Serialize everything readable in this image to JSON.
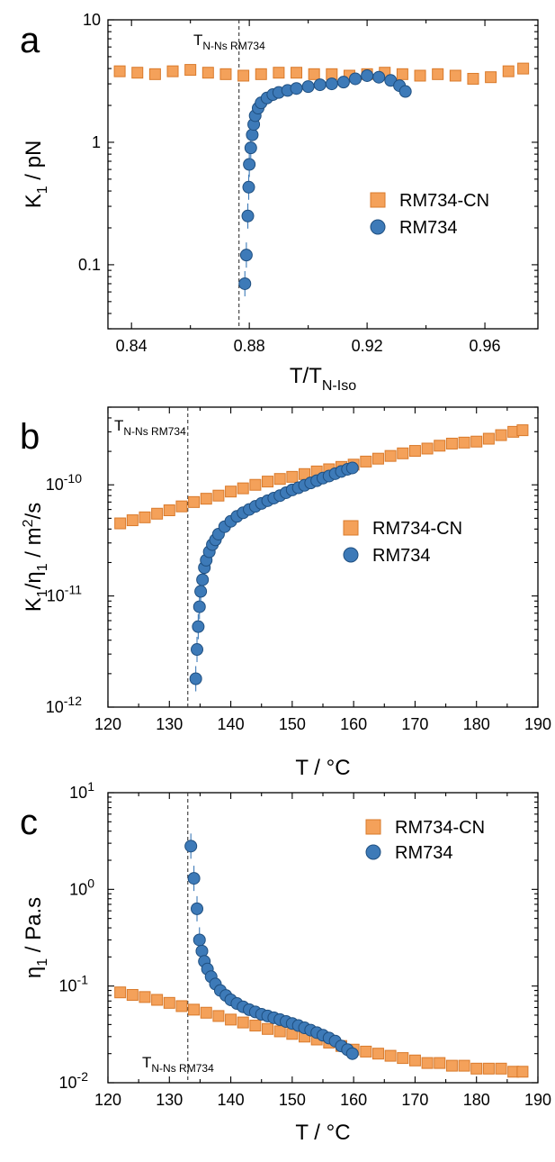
{
  "colors": {
    "rm734_cn": "#f4a15a",
    "rm734": "#3d7ab8",
    "axis": "#000000"
  },
  "chart_data": [
    {
      "panel": "a",
      "type": "scatter",
      "xlabel": "T/T",
      "xlabel_sub": "N-Iso",
      "ylabel": "K",
      "ylabel_sub": "1",
      "ylabel_unit": " / pN",
      "yscale": "log",
      "xlim": [
        0.832,
        0.978
      ],
      "ylim": [
        0.03,
        10
      ],
      "xticks": [
        0.84,
        0.88,
        0.92,
        0.96
      ],
      "xtick_labels": [
        "0.84",
        "0.88",
        "0.92",
        "0.96"
      ],
      "yticks": [
        0.1,
        1,
        10
      ],
      "ytick_labels": [
        "0.1",
        "1",
        "10"
      ],
      "vline": {
        "x": 0.8765,
        "label": "T",
        "label_sub": "N-Ns",
        "label_tag": "RM734"
      },
      "legend": {
        "position": "right",
        "entries": [
          "RM734-CN",
          "RM734"
        ]
      },
      "series": [
        {
          "name": "RM734-CN",
          "marker": "square",
          "x": [
            0.836,
            0.842,
            0.848,
            0.854,
            0.86,
            0.866,
            0.872,
            0.878,
            0.884,
            0.89,
            0.896,
            0.902,
            0.908,
            0.914,
            0.92,
            0.926,
            0.932,
            0.938,
            0.944,
            0.95,
            0.956,
            0.962,
            0.968,
            0.973
          ],
          "y": [
            3.8,
            3.7,
            3.6,
            3.8,
            3.9,
            3.7,
            3.6,
            3.5,
            3.6,
            3.7,
            3.7,
            3.6,
            3.6,
            3.5,
            3.6,
            3.7,
            3.6,
            3.5,
            3.6,
            3.5,
            3.3,
            3.4,
            3.8,
            4.0
          ]
        },
        {
          "name": "RM734",
          "marker": "circle",
          "x": [
            0.8785,
            0.879,
            0.8795,
            0.8798,
            0.88,
            0.8805,
            0.881,
            0.8815,
            0.882,
            0.883,
            0.884,
            0.886,
            0.888,
            0.89,
            0.893,
            0.896,
            0.9,
            0.904,
            0.908,
            0.912,
            0.916,
            0.92,
            0.924,
            0.928,
            0.931,
            0.933
          ],
          "y": [
            0.07,
            0.12,
            0.25,
            0.43,
            0.66,
            0.9,
            1.15,
            1.4,
            1.65,
            1.9,
            2.1,
            2.3,
            2.45,
            2.55,
            2.65,
            2.75,
            2.85,
            2.95,
            3.0,
            3.1,
            3.3,
            3.5,
            3.4,
            3.2,
            2.9,
            2.6
          ]
        }
      ]
    },
    {
      "panel": "b",
      "type": "scatter",
      "xlabel": "T / °C",
      "ylabel": "K",
      "ylabel_sub": "1",
      "ylabel_mid": "/η",
      "ylabel_sub2": "1",
      "ylabel_unit": " / m",
      "ylabel_sup": "2",
      "ylabel_tail": "/s",
      "yscale": "log",
      "xlim": [
        120,
        190
      ],
      "ylim": [
        1e-12,
        5e-10
      ],
      "xticks": [
        120,
        130,
        140,
        150,
        160,
        170,
        180,
        190
      ],
      "xtick_labels": [
        "120",
        "130",
        "140",
        "150",
        "160",
        "170",
        "180",
        "190"
      ],
      "yticks": [
        1e-12,
        1e-11,
        1e-10
      ],
      "ytick_labels": [
        "10",
        "10",
        "10"
      ],
      "ytick_exponents": [
        "-12",
        "-11",
        "-10"
      ],
      "vline": {
        "x": 133,
        "label": "T",
        "label_sub": "N-Ns",
        "label_tag": "RM734"
      },
      "legend": {
        "position": "right",
        "entries": [
          "RM734-CN",
          "RM734"
        ]
      },
      "series": [
        {
          "name": "RM734-CN",
          "marker": "square",
          "x": [
            122,
            124,
            126,
            128,
            130,
            132,
            134,
            136,
            138,
            140,
            142,
            144,
            146,
            148,
            150,
            152,
            154,
            156,
            158,
            160,
            162,
            164,
            166,
            168,
            170,
            172,
            174,
            176,
            178,
            180,
            182,
            184,
            186,
            187.5
          ],
          "y": [
            4.5e-11,
            4.8e-11,
            5.1e-11,
            5.5e-11,
            5.9e-11,
            6.4e-11,
            7e-11,
            7.5e-11,
            8e-11,
            8.7e-11,
            9.3e-11,
            1e-10,
            1.07e-10,
            1.13e-10,
            1.18e-10,
            1.25e-10,
            1.32e-10,
            1.38e-10,
            1.45e-10,
            1.52e-10,
            1.62e-10,
            1.72e-10,
            1.82e-10,
            1.92e-10,
            2.02e-10,
            2.12e-10,
            2.25e-10,
            2.35e-10,
            2.4e-10,
            2.45e-10,
            2.6e-10,
            2.8e-10,
            3e-10,
            3.1e-10
          ]
        },
        {
          "name": "RM734",
          "marker": "circle",
          "x": [
            134.3,
            134.5,
            134.7,
            134.9,
            135.1,
            135.4,
            135.7,
            136.0,
            136.5,
            137.0,
            137.5,
            138.0,
            139.0,
            140.0,
            141.0,
            142.0,
            143.0,
            144.0,
            145.0,
            146.0,
            147.0,
            148.0,
            149.0,
            150.0,
            151.0,
            152.0,
            153.0,
            154.0,
            155.0,
            156.0,
            157.0,
            158.0,
            159.0,
            159.8
          ],
          "y": [
            1.8e-12,
            3.3e-12,
            5.3e-12,
            8e-12,
            1.1e-11,
            1.4e-11,
            1.8e-11,
            2.1e-11,
            2.5e-11,
            2.9e-11,
            3.2e-11,
            3.6e-11,
            4.2e-11,
            4.7e-11,
            5.2e-11,
            5.6e-11,
            6e-11,
            6.4e-11,
            6.8e-11,
            7.2e-11,
            7.6e-11,
            8e-11,
            8.5e-11,
            9e-11,
            9.4e-11,
            9.9e-11,
            1.04e-10,
            1.09e-10,
            1.15e-10,
            1.2e-10,
            1.26e-10,
            1.32e-10,
            1.38e-10,
            1.42e-10
          ]
        }
      ]
    },
    {
      "panel": "c",
      "type": "scatter",
      "xlabel": "T / °C",
      "ylabel": "η",
      "ylabel_sub": "1",
      "ylabel_unit": " / Pa.s",
      "yscale": "log",
      "xlim": [
        120,
        190
      ],
      "ylim": [
        0.01,
        10
      ],
      "xticks": [
        120,
        130,
        140,
        150,
        160,
        170,
        180,
        190
      ],
      "xtick_labels": [
        "120",
        "130",
        "140",
        "150",
        "160",
        "170",
        "180",
        "190"
      ],
      "yticks": [
        0.01,
        0.1,
        1,
        10
      ],
      "ytick_labels": [
        "10",
        "10",
        "10",
        "10"
      ],
      "ytick_exponents": [
        "-2",
        "-1",
        "0",
        "1"
      ],
      "vline": {
        "x": 133,
        "label": "T",
        "label_sub": "N-Ns",
        "label_tag": "RM734"
      },
      "legend": {
        "position": "top-right",
        "entries": [
          "RM734-CN",
          "RM734"
        ]
      },
      "series": [
        {
          "name": "RM734-CN",
          "marker": "square",
          "x": [
            122,
            124,
            126,
            128,
            130,
            132,
            134,
            136,
            138,
            140,
            142,
            144,
            146,
            148,
            150,
            152,
            154,
            156,
            158,
            160,
            162,
            164,
            166,
            168,
            170,
            172,
            174,
            176,
            178,
            180,
            182,
            184,
            186,
            187.5
          ],
          "y": [
            0.086,
            0.081,
            0.077,
            0.072,
            0.067,
            0.062,
            0.057,
            0.053,
            0.049,
            0.045,
            0.042,
            0.039,
            0.036,
            0.034,
            0.032,
            0.03,
            0.028,
            0.026,
            0.024,
            0.022,
            0.021,
            0.02,
            0.019,
            0.018,
            0.017,
            0.016,
            0.016,
            0.015,
            0.015,
            0.014,
            0.014,
            0.014,
            0.013,
            0.013
          ]
        },
        {
          "name": "RM734",
          "marker": "circle",
          "x": [
            133.5,
            134.0,
            134.5,
            134.9,
            135.3,
            135.7,
            136.2,
            136.8,
            137.5,
            138.3,
            139.2,
            140.0,
            141.0,
            142.0,
            143.0,
            144.0,
            145.0,
            146.0,
            147.0,
            148.0,
            149.0,
            150.0,
            151.0,
            152.0,
            153.0,
            154.0,
            155.0,
            156.0,
            157.0,
            158.0,
            159.0,
            159.8
          ],
          "y": [
            2.8,
            1.3,
            0.63,
            0.3,
            0.23,
            0.18,
            0.15,
            0.125,
            0.105,
            0.09,
            0.08,
            0.072,
            0.066,
            0.061,
            0.057,
            0.054,
            0.051,
            0.049,
            0.047,
            0.045,
            0.043,
            0.041,
            0.039,
            0.037,
            0.035,
            0.033,
            0.031,
            0.029,
            0.027,
            0.024,
            0.022,
            0.02
          ]
        }
      ]
    }
  ]
}
